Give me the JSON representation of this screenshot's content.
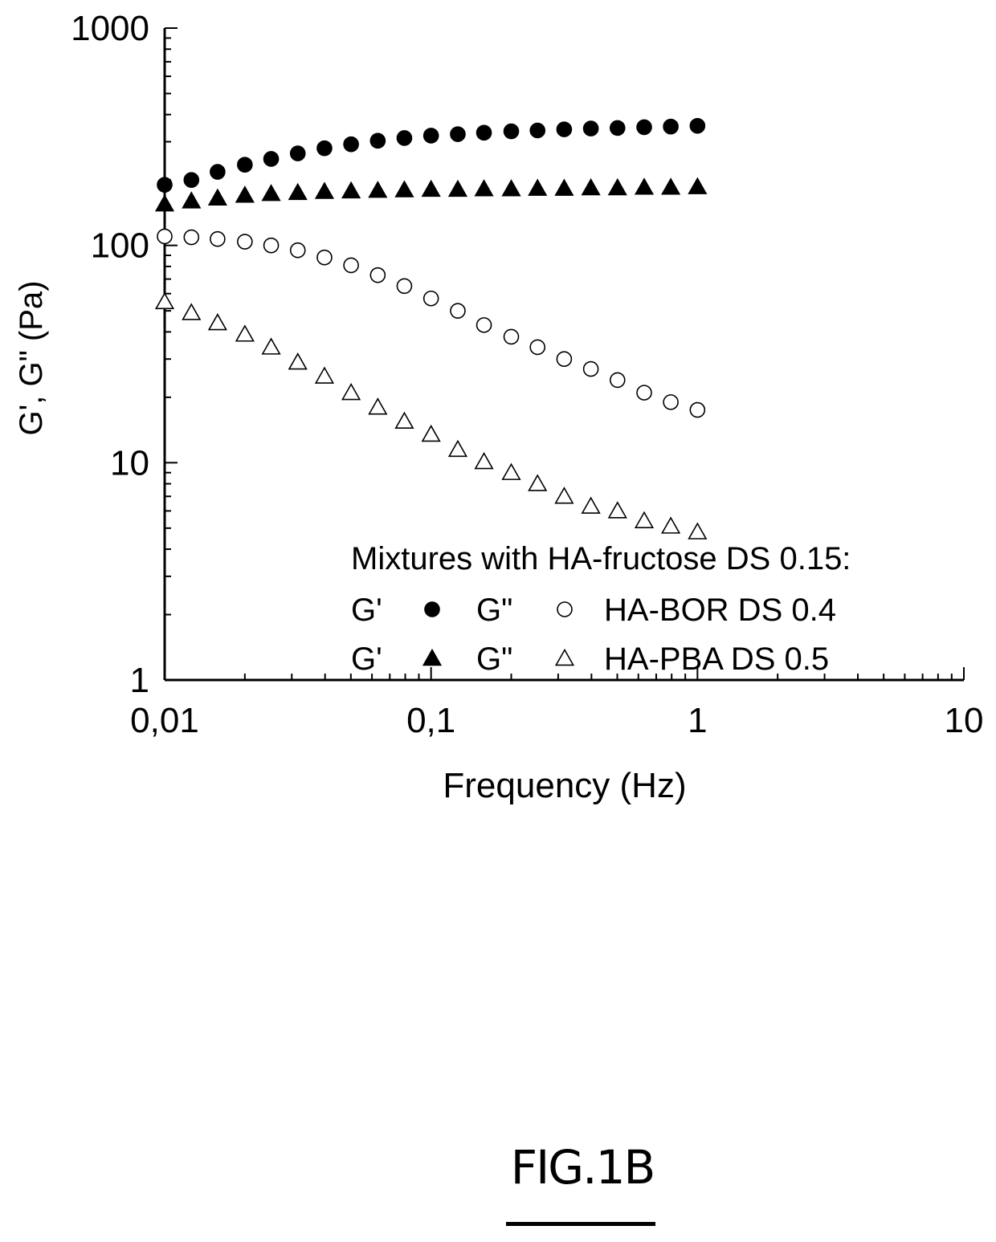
{
  "chart_data": {
    "type": "scatter",
    "xscale": "log",
    "yscale": "log",
    "xlabel": "Frequency (Hz)",
    "ylabel": "G', G\" (Pa)",
    "xlim": [
      0.01,
      10
    ],
    "ylim": [
      1,
      1000
    ],
    "xticks": [
      {
        "value": 0.01,
        "label": "0,01"
      },
      {
        "value": 0.1,
        "label": "0,1"
      },
      {
        "value": 1,
        "label": "1"
      },
      {
        "value": 10,
        "label": "10"
      }
    ],
    "yticks": [
      {
        "value": 1,
        "label": "1"
      },
      {
        "value": 10,
        "label": "10"
      },
      {
        "value": 100,
        "label": "100"
      },
      {
        "value": 1000,
        "label": "1000"
      }
    ],
    "x": [
      0.01,
      0.0126,
      0.0158,
      0.02,
      0.0251,
      0.0316,
      0.0398,
      0.0501,
      0.0631,
      0.0794,
      0.1,
      0.126,
      0.158,
      0.2,
      0.251,
      0.316,
      0.398,
      0.501,
      0.631,
      0.794,
      1.0
    ],
    "series": [
      {
        "group": "HA-BOR DS 0.4",
        "modulus": "G'",
        "marker": "filled-circle",
        "values": [
          190,
          200,
          218,
          235,
          250,
          265,
          280,
          292,
          303,
          312,
          320,
          325,
          330,
          335,
          338,
          342,
          345,
          347,
          350,
          352,
          355
        ]
      },
      {
        "group": "HA-PBA DS 0.5",
        "modulus": "G'",
        "marker": "filled-triangle",
        "values": [
          155,
          160,
          165,
          170,
          173,
          175,
          177,
          178,
          179,
          180,
          181,
          181,
          182,
          182,
          183,
          183,
          184,
          184,
          185,
          185,
          186
        ]
      },
      {
        "group": "HA-BOR DS 0.4",
        "modulus": "G\"",
        "marker": "open-circle",
        "values": [
          110,
          109,
          107,
          104,
          100,
          95,
          88,
          81,
          73,
          65,
          57,
          50,
          43,
          38,
          34,
          30,
          27,
          24,
          21,
          19,
          17.5
        ]
      },
      {
        "group": "HA-PBA DS 0.5",
        "modulus": "G\"",
        "marker": "open-triangle",
        "values": [
          55,
          49,
          44,
          39,
          34,
          29,
          25,
          21,
          18,
          15.5,
          13.5,
          11.5,
          10.1,
          9.0,
          8.0,
          7.0,
          6.3,
          6.0,
          5.4,
          5.1,
          4.8
        ]
      }
    ],
    "legend": {
      "title": "Mixtures with HA-fructose DS 0.15:",
      "rows": [
        {
          "gp": "G'",
          "gpp": "G\"",
          "label": "HA-BOR DS 0.4",
          "filled_marker": "filled-circle",
          "open_marker": "open-circle"
        },
        {
          "gp": "G'",
          "gpp": "G\"",
          "label": "HA-PBA DS 0.5",
          "filled_marker": "filled-triangle",
          "open_marker": "open-triangle"
        }
      ],
      "placement": "bottom-right"
    },
    "grid": false
  },
  "figure_label": "FIG.1B"
}
